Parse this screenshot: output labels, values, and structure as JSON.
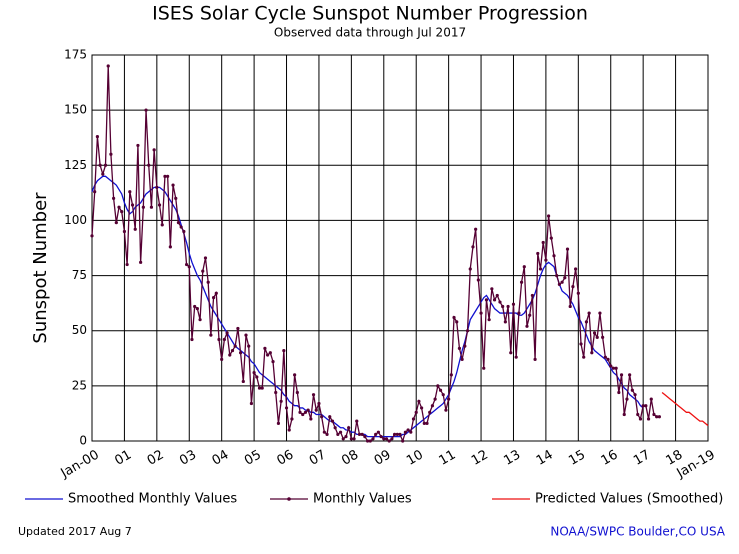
{
  "chart_data": {
    "type": "line",
    "title": "ISES Solar Cycle Sunspot Number Progression",
    "subtitle": "Observed data through Jul 2017",
    "y_label": "Sunspot Number",
    "footer_left": "Updated 2017 Aug  7",
    "footer_right": "NOAA/SWPC Boulder,CO USA",
    "grid": true,
    "legend": "bottom",
    "xlim": [
      "2000-01",
      "2019-01"
    ],
    "xticks": [
      {
        "value": "2000-01",
        "label": "Jan-00"
      },
      {
        "value": "2001-01",
        "label": "01"
      },
      {
        "value": "2002-01",
        "label": "02"
      },
      {
        "value": "2003-01",
        "label": "03"
      },
      {
        "value": "2004-01",
        "label": "04"
      },
      {
        "value": "2005-01",
        "label": "05"
      },
      {
        "value": "2006-01",
        "label": "06"
      },
      {
        "value": "2007-01",
        "label": "07"
      },
      {
        "value": "2008-01",
        "label": "08"
      },
      {
        "value": "2009-01",
        "label": "09"
      },
      {
        "value": "2010-01",
        "label": "10"
      },
      {
        "value": "2011-01",
        "label": "11"
      },
      {
        "value": "2012-01",
        "label": "12"
      },
      {
        "value": "2013-01",
        "label": "13"
      },
      {
        "value": "2014-01",
        "label": "14"
      },
      {
        "value": "2015-01",
        "label": "15"
      },
      {
        "value": "2016-01",
        "label": "16"
      },
      {
        "value": "2017-01",
        "label": "17"
      },
      {
        "value": "2018-01",
        "label": "18"
      },
      {
        "value": "2019-01",
        "label": "Jan-19"
      }
    ],
    "ylim": [
      0,
      175
    ],
    "yticks": [
      0,
      25,
      50,
      75,
      100,
      125,
      150,
      175
    ],
    "x": [
      "2000-01",
      "2000-02",
      "2000-03",
      "2000-04",
      "2000-05",
      "2000-06",
      "2000-07",
      "2000-08",
      "2000-09",
      "2000-10",
      "2000-11",
      "2000-12",
      "2001-01",
      "2001-02",
      "2001-03",
      "2001-04",
      "2001-05",
      "2001-06",
      "2001-07",
      "2001-08",
      "2001-09",
      "2001-10",
      "2001-11",
      "2001-12",
      "2002-01",
      "2002-02",
      "2002-03",
      "2002-04",
      "2002-05",
      "2002-06",
      "2002-07",
      "2002-08",
      "2002-09",
      "2002-10",
      "2002-11",
      "2002-12",
      "2003-01",
      "2003-02",
      "2003-03",
      "2003-04",
      "2003-05",
      "2003-06",
      "2003-07",
      "2003-08",
      "2003-09",
      "2003-10",
      "2003-11",
      "2003-12",
      "2004-01",
      "2004-02",
      "2004-03",
      "2004-04",
      "2004-05",
      "2004-06",
      "2004-07",
      "2004-08",
      "2004-09",
      "2004-10",
      "2004-11",
      "2004-12",
      "2005-01",
      "2005-02",
      "2005-03",
      "2005-04",
      "2005-05",
      "2005-06",
      "2005-07",
      "2005-08",
      "2005-09",
      "2005-10",
      "2005-11",
      "2005-12",
      "2006-01",
      "2006-02",
      "2006-03",
      "2006-04",
      "2006-05",
      "2006-06",
      "2006-07",
      "2006-08",
      "2006-09",
      "2006-10",
      "2006-11",
      "2006-12",
      "2007-01",
      "2007-02",
      "2007-03",
      "2007-04",
      "2007-05",
      "2007-06",
      "2007-07",
      "2007-08",
      "2007-09",
      "2007-10",
      "2007-11",
      "2007-12",
      "2008-01",
      "2008-02",
      "2008-03",
      "2008-04",
      "2008-05",
      "2008-06",
      "2008-07",
      "2008-08",
      "2008-09",
      "2008-10",
      "2008-11",
      "2008-12",
      "2009-01",
      "2009-02",
      "2009-03",
      "2009-04",
      "2009-05",
      "2009-06",
      "2009-07",
      "2009-08",
      "2009-09",
      "2009-10",
      "2009-11",
      "2009-12",
      "2010-01",
      "2010-02",
      "2010-03",
      "2010-04",
      "2010-05",
      "2010-06",
      "2010-07",
      "2010-08",
      "2010-09",
      "2010-10",
      "2010-11",
      "2010-12",
      "2011-01",
      "2011-02",
      "2011-03",
      "2011-04",
      "2011-05",
      "2011-06",
      "2011-07",
      "2011-08",
      "2011-09",
      "2011-10",
      "2011-11",
      "2011-12",
      "2012-01",
      "2012-02",
      "2012-03",
      "2012-04",
      "2012-05",
      "2012-06",
      "2012-07",
      "2012-08",
      "2012-09",
      "2012-10",
      "2012-11",
      "2012-12",
      "2013-01",
      "2013-02",
      "2013-03",
      "2013-04",
      "2013-05",
      "2013-06",
      "2013-07",
      "2013-08",
      "2013-09",
      "2013-10",
      "2013-11",
      "2013-12",
      "2014-01",
      "2014-02",
      "2014-03",
      "2014-04",
      "2014-05",
      "2014-06",
      "2014-07",
      "2014-08",
      "2014-09",
      "2014-10",
      "2014-11",
      "2014-12",
      "2015-01",
      "2015-02",
      "2015-03",
      "2015-04",
      "2015-05",
      "2015-06",
      "2015-07",
      "2015-08",
      "2015-09",
      "2015-10",
      "2015-11",
      "2015-12",
      "2016-01",
      "2016-02",
      "2016-03",
      "2016-04",
      "2016-05",
      "2016-06",
      "2016-07",
      "2016-08",
      "2016-09",
      "2016-10",
      "2016-11",
      "2016-12",
      "2017-01",
      "2017-02",
      "2017-03",
      "2017-04",
      "2017-05",
      "2017-06",
      "2017-07"
    ],
    "series": [
      {
        "name": "Smoothed Monthly Values",
        "color": "#1010d0",
        "markers": false,
        "values": [
          113,
          116,
          118,
          119,
          120,
          120,
          119,
          118,
          117,
          116,
          114,
          112,
          108,
          105,
          103,
          104,
          106,
          107,
          108,
          110,
          112,
          113,
          114,
          115,
          115,
          115,
          114,
          113,
          111,
          109,
          107,
          105,
          102,
          98,
          94,
          90,
          85,
          81,
          78,
          75,
          73,
          70,
          67,
          64,
          61,
          59,
          57,
          55,
          53,
          51,
          49,
          47,
          45,
          43,
          42,
          41,
          40,
          39,
          38,
          36,
          35,
          33,
          31,
          30,
          29,
          28,
          27,
          26,
          25,
          24,
          23,
          21,
          20,
          18,
          17,
          16,
          16,
          15,
          15,
          14,
          14,
          13,
          13,
          12,
          12,
          12,
          11,
          10,
          9,
          9,
          8,
          7,
          6,
          6,
          5,
          5,
          4,
          4,
          3,
          3,
          3,
          3,
          2,
          2,
          2,
          2,
          2,
          2,
          2,
          2,
          2,
          2,
          2,
          2,
          2,
          3,
          3,
          4,
          5,
          6,
          7,
          8,
          9,
          10,
          11,
          12,
          13,
          14,
          15,
          16,
          17,
          19,
          21,
          24,
          27,
          31,
          36,
          41,
          45,
          50,
          55,
          57,
          59,
          61,
          63,
          65,
          66,
          64,
          62,
          60,
          59,
          58,
          58,
          58,
          58,
          58,
          58,
          58,
          57,
          57,
          58,
          60,
          62,
          64,
          67,
          71,
          75,
          78,
          80,
          81,
          80,
          79,
          75,
          71,
          68,
          67,
          66,
          64,
          62,
          59,
          56,
          54,
          51,
          48,
          45,
          43,
          41,
          40,
          39,
          38,
          37,
          35,
          33,
          31,
          30,
          28,
          26,
          24,
          23,
          21,
          20,
          19,
          18,
          16,
          15,
          null,
          null,
          null,
          null,
          null,
          null
        ]
      },
      {
        "name": "Monthly Values",
        "color": "#550033",
        "markers": true,
        "values": [
          93,
          113,
          138,
          125,
          121,
          125,
          170,
          130,
          110,
          99,
          106,
          104,
          95,
          80,
          113,
          107,
          96,
          134,
          81,
          106,
          150,
          125,
          106,
          132,
          115,
          107,
          98,
          120,
          120,
          88,
          116,
          110,
          99,
          97,
          95,
          80,
          79,
          46,
          61,
          60,
          55,
          77,
          83,
          72,
          48,
          65,
          67,
          46,
          37,
          46,
          49,
          39,
          41,
          43,
          51,
          40,
          27,
          48,
          43,
          17,
          31,
          29,
          24,
          24,
          42,
          39,
          40,
          36,
          22,
          8,
          18,
          41,
          15,
          5,
          10,
          30,
          22,
          13,
          12,
          13,
          14,
          10,
          21,
          14,
          17,
          11,
          4,
          3,
          11,
          9,
          6,
          3,
          4,
          1,
          2,
          6,
          1,
          1,
          9,
          3,
          3,
          2,
          0,
          0,
          1,
          3,
          4,
          2,
          1,
          1,
          0,
          1,
          3,
          3,
          3,
          0,
          4,
          5,
          4,
          10,
          13,
          18,
          15,
          8,
          8,
          13,
          16,
          19,
          25,
          23,
          21,
          14,
          19,
          30,
          56,
          54,
          42,
          37,
          43,
          50,
          78,
          88,
          96,
          73,
          58,
          33,
          64,
          55,
          69,
          64,
          66,
          63,
          61,
          54,
          61,
          40,
          62,
          38,
          58,
          72,
          79,
          52,
          57,
          66,
          37,
          85,
          78,
          90,
          82,
          102,
          92,
          84,
          75,
          71,
          72,
          74,
          87,
          61,
          70,
          78,
          67,
          44,
          38,
          54,
          58,
          40,
          49,
          47,
          58,
          47,
          38,
          37,
          34,
          33,
          33,
          22,
          30,
          12,
          19,
          30,
          23,
          21,
          12,
          10,
          16,
          16,
          10,
          19,
          12,
          11,
          11
        ]
      },
      {
        "name": "Predicted Values (Smoothed)",
        "color": "#ee1111",
        "markers": false,
        "x": [
          "2017-08",
          "2017-09",
          "2017-10",
          "2017-11",
          "2017-12",
          "2018-01",
          "2018-02",
          "2018-03",
          "2018-04",
          "2018-05",
          "2018-06",
          "2018-07",
          "2018-08",
          "2018-09",
          "2018-10",
          "2018-11",
          "2018-12",
          "2019-01"
        ],
        "values": [
          22,
          21,
          20,
          19,
          18,
          17,
          16,
          15,
          14,
          13,
          13,
          12,
          11,
          10,
          9,
          9,
          8,
          7
        ]
      }
    ]
  }
}
